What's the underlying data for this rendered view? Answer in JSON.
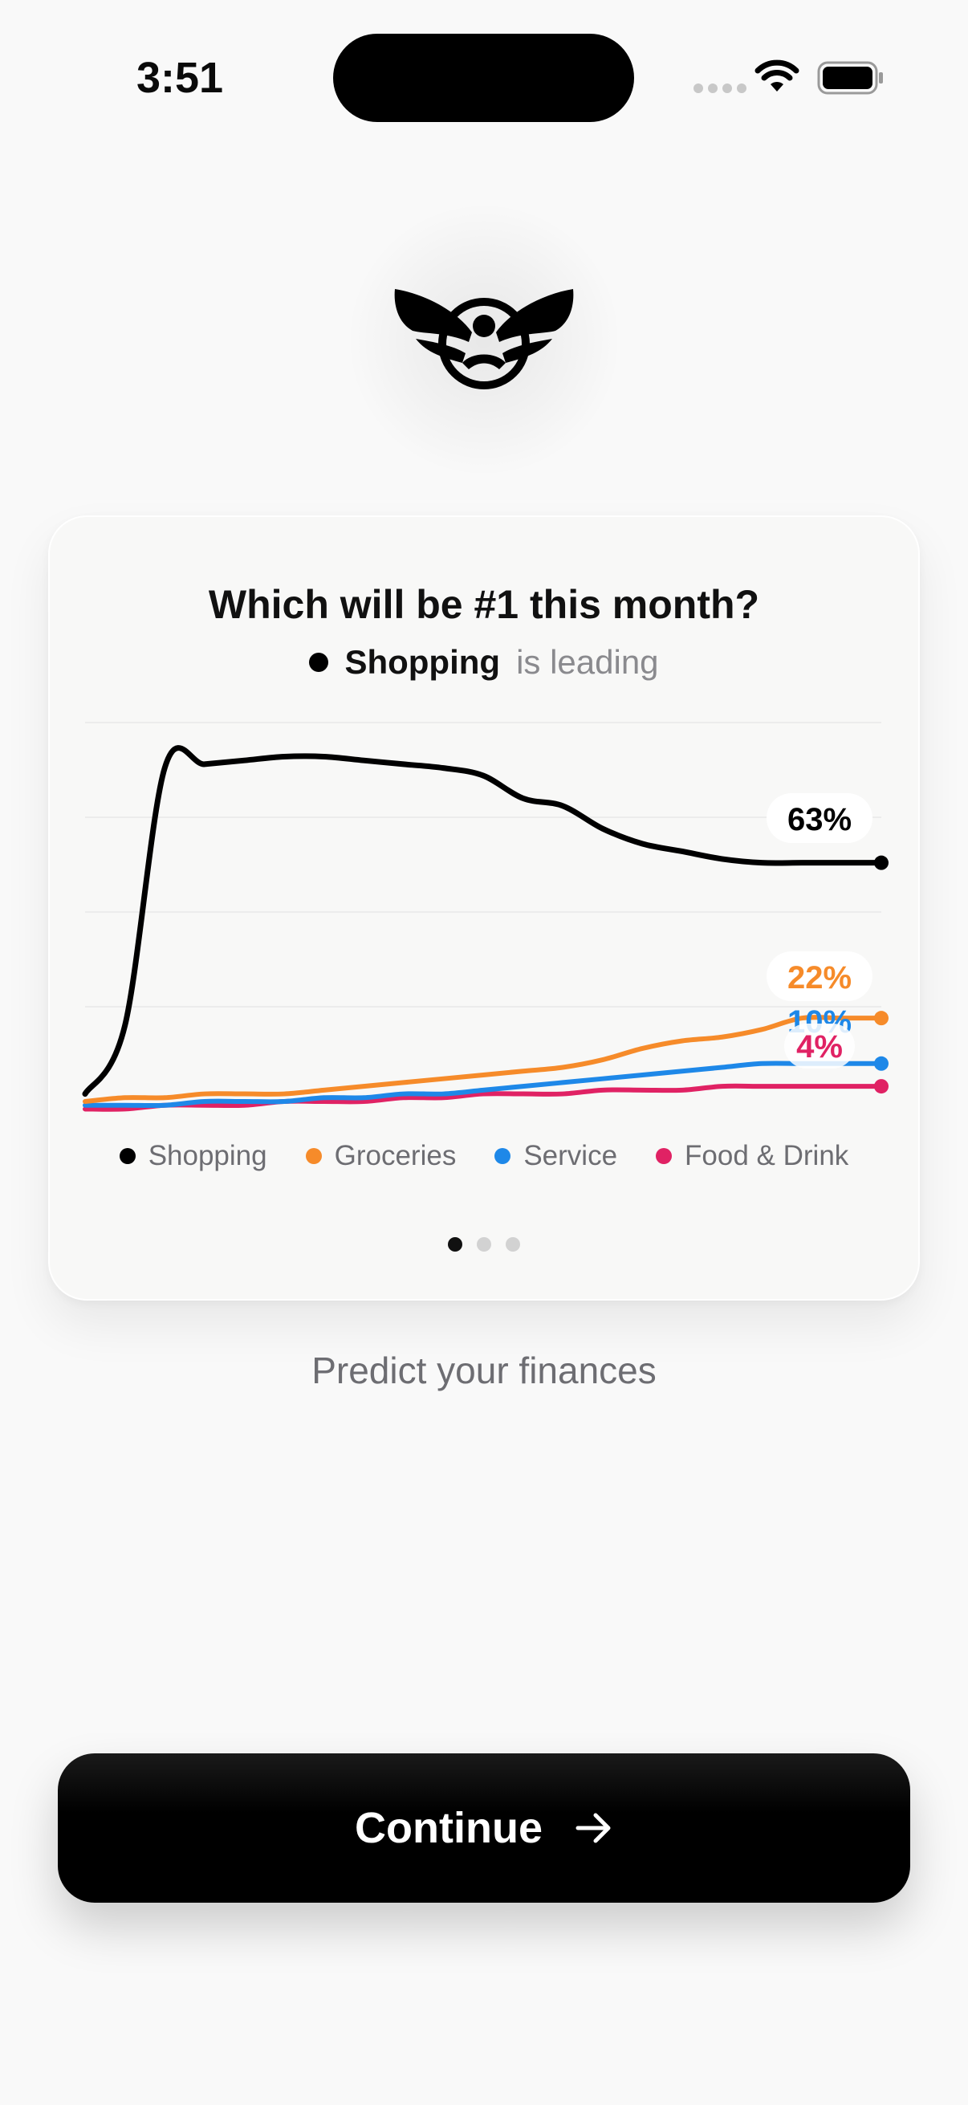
{
  "status_bar": {
    "time": "3:51"
  },
  "card": {
    "title": "Which will be #1 this month?",
    "leader_name": "Shopping",
    "leader_suffix": "is leading"
  },
  "chart_data": {
    "type": "line",
    "title": "",
    "xlabel": "",
    "ylabel": "",
    "ylim": [
      0,
      100
    ],
    "grid": true,
    "legend_position": "bottom",
    "x": [
      0,
      1,
      2,
      3,
      4,
      5,
      6,
      7,
      8,
      9,
      10,
      11,
      12,
      13,
      14,
      15,
      16,
      17,
      18,
      19,
      20
    ],
    "series": [
      {
        "name": "Shopping",
        "color": "#000000",
        "end_label": "63%",
        "values": [
          2,
          20,
          88,
          89,
          90,
          91,
          91,
          90,
          89,
          88,
          86,
          80,
          78,
          72,
          68,
          66,
          64,
          63,
          63,
          63,
          63
        ]
      },
      {
        "name": "Groceries",
        "color": "#f68b2a",
        "end_label": "22%",
        "values": [
          0,
          1,
          1,
          2,
          2,
          2,
          3,
          4,
          5,
          6,
          7,
          8,
          9,
          11,
          14,
          16,
          17,
          19,
          22,
          22,
          22
        ]
      },
      {
        "name": "Service",
        "color": "#1e88e8",
        "end_label": "10%",
        "values": [
          -1,
          -1,
          -1,
          0,
          0,
          0,
          1,
          1,
          2,
          2,
          3,
          4,
          5,
          6,
          7,
          8,
          9,
          10,
          10,
          10,
          10
        ]
      },
      {
        "name": "Food & Drink",
        "color": "#e02264",
        "end_label": "4%",
        "values": [
          -2,
          -2,
          -1,
          -1,
          -1,
          0,
          0,
          0,
          1,
          1,
          2,
          2,
          2,
          3,
          3,
          3,
          4,
          4,
          4,
          4,
          4
        ]
      }
    ]
  },
  "pager": {
    "count": 3,
    "active_index": 0
  },
  "tagline": "Predict your finances",
  "continue_label": "Continue",
  "icons": {
    "logo": "winged-emblem-icon",
    "continue_arrow": "arrow-right-icon",
    "wifi": "wifi-icon",
    "battery": "battery-icon",
    "signal": "cellular-signal-icon"
  }
}
